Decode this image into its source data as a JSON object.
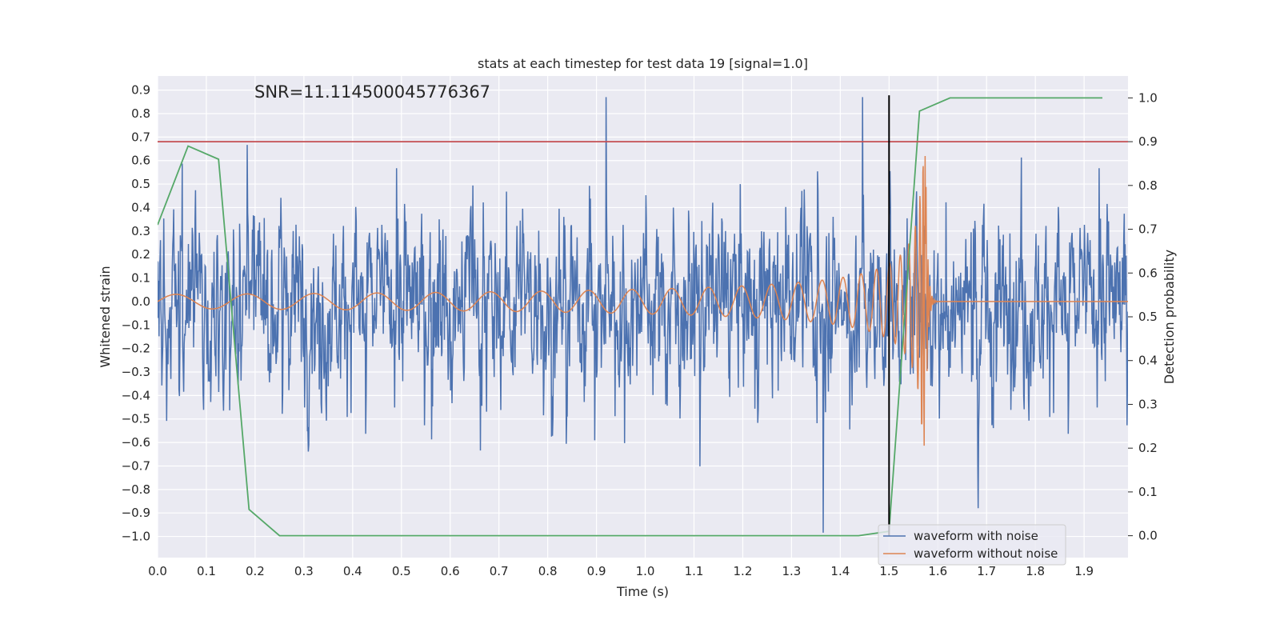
{
  "chart_data": {
    "type": "line",
    "title": "stats at each timestep for test data 19 [signal=1.0]",
    "annotation": "SNR=11.114500045776367",
    "xlabel": "Time (s)",
    "ylabel": "Whitened strain",
    "y2label": "Detection probability",
    "xlim": [
      0.0,
      1.99
    ],
    "ylim": [
      -1.09,
      0.96
    ],
    "y2lim": [
      -0.05,
      1.05
    ],
    "xticks": [
      "0.0",
      "0.1",
      "0.2",
      "0.3",
      "0.4",
      "0.5",
      "0.6",
      "0.7",
      "0.8",
      "0.9",
      "1.0",
      "1.1",
      "1.2",
      "1.3",
      "1.4",
      "1.5",
      "1.6",
      "1.7",
      "1.8",
      "1.9"
    ],
    "yticks": [
      "0.9",
      "0.8",
      "0.7",
      "0.6",
      "0.5",
      "0.4",
      "0.3",
      "0.2",
      "0.1",
      "0.0",
      "−0.1",
      "−0.2",
      "−0.3",
      "−0.4",
      "−0.5",
      "−0.6",
      "−0.7",
      "−0.8",
      "−0.9",
      "−1.0"
    ],
    "y2ticks": [
      "1.0",
      "0.9",
      "0.8",
      "0.7",
      "0.6",
      "0.5",
      "0.4",
      "0.3",
      "0.2",
      "0.1",
      "0.0"
    ],
    "grid": true,
    "legend_position": "bottom-right",
    "threshold_line": {
      "axis": "y2",
      "value": 0.9,
      "color": "#c44e52"
    },
    "vertical_marker": {
      "x": 1.5,
      "y_from": -0.998,
      "y_to": 0.878,
      "color": "#000000"
    },
    "series": [
      {
        "name": "waveform with noise",
        "color": "#4c72b0",
        "axis": "y",
        "kind": "noise",
        "x_start": 0.0,
        "x_end": 1.99,
        "typical_amplitude": 0.25,
        "peak_max": 0.87,
        "peak_min": -0.99
      },
      {
        "name": "waveform without noise",
        "color": "#dd8452",
        "axis": "y",
        "kind": "chirp",
        "x_start": 0.0,
        "x_end": 1.99,
        "merger_time": 1.575,
        "start_amplitude": 0.03,
        "peak_amplitude": 0.62
      },
      {
        "color": "#55a868",
        "axis": "y2",
        "kind": "probability",
        "x": [
          0.0,
          0.0625,
          0.125,
          0.1875,
          0.25,
          0.3125,
          0.375,
          0.4375,
          0.5,
          0.5625,
          0.625,
          0.6875,
          0.75,
          0.8125,
          0.875,
          0.9375,
          1.0,
          1.0625,
          1.125,
          1.1875,
          1.25,
          1.3125,
          1.375,
          1.4375,
          1.5,
          1.5625,
          1.625,
          1.6875,
          1.75,
          1.8125,
          1.875,
          1.9375
        ],
        "values": [
          0.71,
          0.89,
          0.86,
          0.06,
          0.0,
          0.0,
          0.0,
          0.0,
          0.0,
          0.0,
          0.0,
          0.0,
          0.0,
          0.0,
          0.0,
          0.0,
          0.0,
          0.0,
          0.0,
          0.0,
          0.0,
          0.0,
          0.0,
          0.0,
          0.01,
          0.97,
          1.0,
          1.0,
          1.0,
          1.0,
          1.0,
          1.0
        ]
      }
    ]
  }
}
